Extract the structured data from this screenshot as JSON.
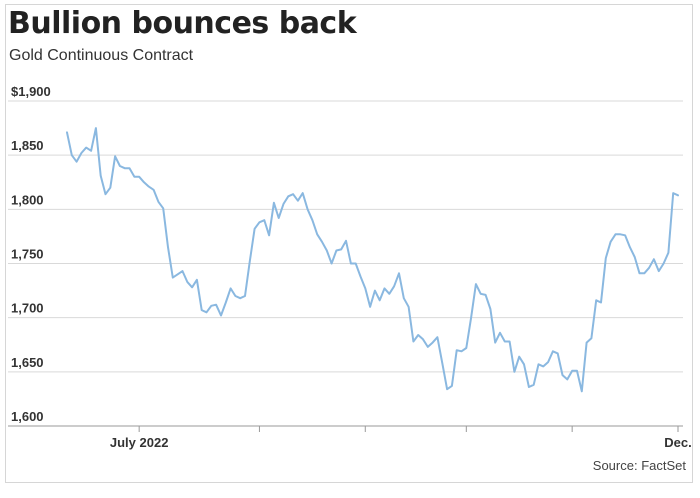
{
  "header": {
    "title": "Bullion bounces back",
    "subtitle": "Gold Continuous Contract"
  },
  "footer": {
    "source": "Source: FactSet"
  },
  "colors": {
    "line": "#8ab8e0",
    "grid": "#d9d9d9",
    "text": "#333333"
  },
  "chart_data": {
    "type": "line",
    "title": "Bullion bounces back",
    "subtitle": "Gold Continuous Contract",
    "ylim": [
      1600,
      1900
    ],
    "y_ticks": [
      {
        "value": 1900,
        "label": "$1,900"
      },
      {
        "value": 1850,
        "label": "1,850"
      },
      {
        "value": 1800,
        "label": "1,800"
      },
      {
        "value": 1750,
        "label": "1,750"
      },
      {
        "value": 1700,
        "label": "1,700"
      },
      {
        "value": 1650,
        "label": "1,650"
      },
      {
        "value": 1600,
        "label": "1,600"
      }
    ],
    "x_ticks": [
      {
        "index": 15,
        "label": "July 2022"
      },
      {
        "index": 40,
        "label": ""
      },
      {
        "index": 62,
        "label": ""
      },
      {
        "index": 83,
        "label": ""
      },
      {
        "index": 105,
        "label": ""
      },
      {
        "index": 127,
        "label": "Dec."
      }
    ],
    "grid": true,
    "series": [
      {
        "values": [
          1871,
          1850,
          1844,
          1852,
          1857,
          1854,
          1875,
          1831,
          1814,
          1820,
          1849,
          1840,
          1838,
          1838,
          1830,
          1830,
          1825,
          1821,
          1818,
          1807,
          1801,
          1765,
          1737,
          1740,
          1743,
          1733,
          1728,
          1735,
          1707,
          1705,
          1711,
          1712,
          1702,
          1714,
          1727,
          1720,
          1718,
          1720,
          1752,
          1782,
          1788,
          1790,
          1776,
          1806,
          1792,
          1805,
          1812,
          1814,
          1808,
          1815,
          1800,
          1790,
          1777,
          1770,
          1762,
          1750,
          1762,
          1763,
          1771,
          1750,
          1750,
          1738,
          1727,
          1710,
          1725,
          1716,
          1727,
          1722,
          1729,
          1741,
          1718,
          1710,
          1678,
          1684,
          1680,
          1673,
          1677,
          1682,
          1658,
          1634,
          1637,
          1670,
          1669,
          1672,
          1700,
          1731,
          1722,
          1721,
          1708,
          1677,
          1686,
          1678,
          1678,
          1650,
          1664,
          1657,
          1636,
          1638,
          1657,
          1655,
          1659,
          1669,
          1667,
          1647,
          1643,
          1651,
          1651,
          1632,
          1677,
          1681,
          1716,
          1714,
          1755,
          1770,
          1777,
          1777,
          1776,
          1765,
          1756,
          1741,
          1741,
          1746,
          1754,
          1743,
          1750,
          1760,
          1815,
          1813
        ]
      }
    ]
  }
}
